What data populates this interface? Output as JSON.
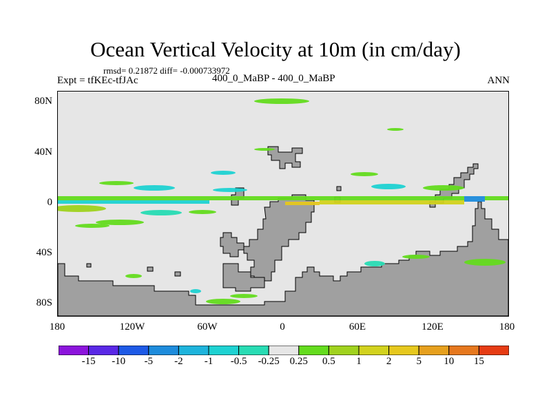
{
  "title": "Ocean Vertical Velocity at 10m (in cm/day)",
  "stats": "rmsd= 0.21872 diff= -0.000733972",
  "left_label": "Expt = tfKEc-tfJAc",
  "center_label": "400_0_MaBP - 400_0_MaBP",
  "right_label": "ANN",
  "map": {
    "lon_range": [
      -180,
      180
    ],
    "lat_range": [
      -90,
      90
    ],
    "y_ticks": [
      {
        "label": "80N",
        "lat": 80
      },
      {
        "label": "40N",
        "lat": 40
      },
      {
        "label": "0",
        "lat": 0
      },
      {
        "label": "40S",
        "lat": -40
      },
      {
        "label": "80S",
        "lat": -80
      }
    ],
    "x_ticks": [
      {
        "label": "180",
        "lon": -180
      },
      {
        "label": "120W",
        "lon": -120
      },
      {
        "label": "60W",
        "lon": -60
      },
      {
        "label": "0",
        "lon": 0
      },
      {
        "label": "60E",
        "lon": 60
      },
      {
        "label": "120E",
        "lon": 120
      },
      {
        "label": "180",
        "lon": 180
      }
    ],
    "land_color": "#a0a0a0",
    "ocean_background": "#e6e6e6"
  },
  "colorbar": {
    "colors": [
      "#8c14dc",
      "#5a28e6",
      "#1e5ae6",
      "#1e8cdc",
      "#1eb4dc",
      "#1ed2d2",
      "#28dcb4",
      "#e6e6e6",
      "#64dc1e",
      "#a0d21e",
      "#d2d21e",
      "#e6c81e",
      "#e6a01e",
      "#e6781e",
      "#e63c14"
    ],
    "labels": [
      "-15",
      "-10",
      "-5",
      "-2",
      "-1",
      "-0.5",
      "-0.25",
      "0.25",
      "0.5",
      "1",
      "2",
      "5",
      "10",
      "15"
    ]
  }
}
